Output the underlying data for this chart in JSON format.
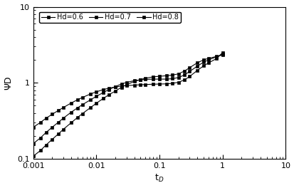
{
  "title": "",
  "xlabel": "t$_D$",
  "ylabel": "ΨD",
  "xlim": [
    0.001,
    10
  ],
  "ylim": [
    0.1,
    10
  ],
  "legend_labels": [
    "Hd=0.6",
    "Hd=0.7",
    "Hd=0.8"
  ],
  "line_color": "#000000",
  "markersize": 3.5,
  "figsize": [
    4.14,
    2.64
  ],
  "dpi": 100,
  "series": {
    "Hd06": {
      "t": [
        0.001,
        0.0013,
        0.0016,
        0.002,
        0.0025,
        0.003,
        0.004,
        0.005,
        0.006,
        0.008,
        0.01,
        0.013,
        0.016,
        0.02,
        0.025,
        0.03,
        0.04,
        0.05,
        0.06,
        0.08,
        0.1,
        0.13,
        0.16,
        0.2,
        0.25,
        0.3,
        0.4,
        0.5,
        0.6,
        0.8,
        1.0
      ],
      "psi": [
        0.108,
        0.128,
        0.152,
        0.18,
        0.212,
        0.244,
        0.298,
        0.348,
        0.392,
        0.468,
        0.538,
        0.625,
        0.7,
        0.778,
        0.872,
        0.942,
        1.042,
        1.102,
        1.148,
        1.198,
        1.218,
        1.238,
        1.262,
        1.312,
        1.43,
        1.58,
        1.84,
        2.0,
        2.1,
        2.22,
        2.32
      ]
    },
    "Hd07": {
      "t": [
        0.001,
        0.0013,
        0.0016,
        0.002,
        0.0025,
        0.003,
        0.004,
        0.005,
        0.006,
        0.008,
        0.01,
        0.013,
        0.016,
        0.02,
        0.025,
        0.03,
        0.04,
        0.05,
        0.06,
        0.08,
        0.1,
        0.13,
        0.16,
        0.2,
        0.25,
        0.3,
        0.4,
        0.5,
        0.6,
        0.8,
        1.0
      ],
      "psi": [
        0.158,
        0.188,
        0.222,
        0.26,
        0.302,
        0.342,
        0.41,
        0.466,
        0.514,
        0.594,
        0.662,
        0.748,
        0.818,
        0.892,
        0.964,
        1.01,
        1.068,
        1.092,
        1.108,
        1.118,
        1.118,
        1.118,
        1.132,
        1.172,
        1.272,
        1.41,
        1.66,
        1.87,
        2.0,
        2.2,
        2.38
      ]
    },
    "Hd08": {
      "t": [
        0.001,
        0.0013,
        0.0016,
        0.002,
        0.0025,
        0.003,
        0.004,
        0.005,
        0.006,
        0.008,
        0.01,
        0.013,
        0.016,
        0.02,
        0.025,
        0.03,
        0.04,
        0.05,
        0.06,
        0.08,
        0.1,
        0.13,
        0.16,
        0.2,
        0.25,
        0.3,
        0.4,
        0.5,
        0.6,
        0.8,
        1.0
      ],
      "psi": [
        0.26,
        0.3,
        0.342,
        0.385,
        0.432,
        0.472,
        0.542,
        0.596,
        0.64,
        0.71,
        0.76,
        0.815,
        0.85,
        0.88,
        0.905,
        0.918,
        0.932,
        0.942,
        0.948,
        0.958,
        0.963,
        0.968,
        0.982,
        1.015,
        1.095,
        1.21,
        1.46,
        1.67,
        1.83,
        2.08,
        2.5
      ]
    }
  }
}
